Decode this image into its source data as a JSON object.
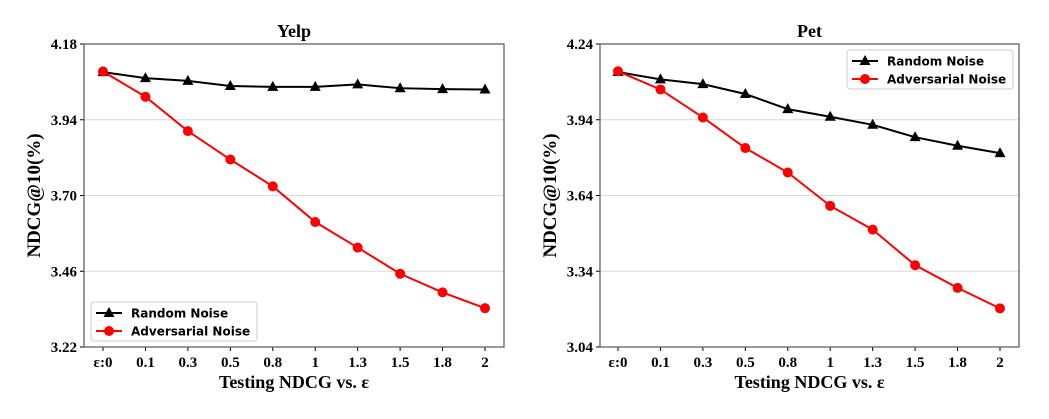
{
  "chart_data": [
    {
      "type": "line",
      "title": "Yelp",
      "xlabel": "Testing NDCG vs. ε",
      "ylabel": "NDCG@10(%)",
      "categories": [
        "ε:0",
        "0.1",
        "0.3",
        "0.5",
        "0.8",
        "1",
        "1.3",
        "1.5",
        "1.8",
        "2"
      ],
      "ylim": [
        3.22,
        4.18
      ],
      "yticks": [
        "3.22",
        "3.46",
        "3.70",
        "3.94",
        "4.18"
      ],
      "grid": "horizontal",
      "legend": "bottom-left",
      "series": [
        {
          "name": "Random Noise",
          "color": "#000000",
          "marker": "triangle",
          "values": [
            4.091,
            4.072,
            4.063,
            4.047,
            4.044,
            4.044,
            4.052,
            4.04,
            4.037,
            4.036
          ]
        },
        {
          "name": "Adversarial Noise",
          "color": "#ff0000",
          "marker": "circle",
          "values": [
            4.093,
            4.013,
            3.904,
            3.814,
            3.729,
            3.616,
            3.535,
            3.452,
            3.393,
            3.343
          ]
        }
      ]
    },
    {
      "type": "line",
      "title": "Pet",
      "xlabel": "Testing NDCG vs. ε",
      "ylabel": "NDCG@10(%)",
      "categories": [
        "ε:0",
        "0.1",
        "0.3",
        "0.5",
        "0.8",
        "1",
        "1.3",
        "1.5",
        "1.8",
        "2"
      ],
      "ylim": [
        3.04,
        4.24
      ],
      "yticks": [
        "3.04",
        "3.34",
        "3.64",
        "3.94",
        "4.24"
      ],
      "grid": "horizontal",
      "legend": "top-right",
      "series": [
        {
          "name": "Random Noise",
          "color": "#000000",
          "marker": "triangle",
          "values": [
            4.129,
            4.1,
            4.081,
            4.042,
            3.982,
            3.952,
            3.92,
            3.871,
            3.837,
            3.808
          ]
        },
        {
          "name": "Adversarial Noise",
          "color": "#ff0000",
          "marker": "circle",
          "values": [
            4.132,
            4.06,
            3.949,
            3.828,
            3.731,
            3.599,
            3.505,
            3.364,
            3.274,
            3.193
          ]
        }
      ]
    }
  ]
}
